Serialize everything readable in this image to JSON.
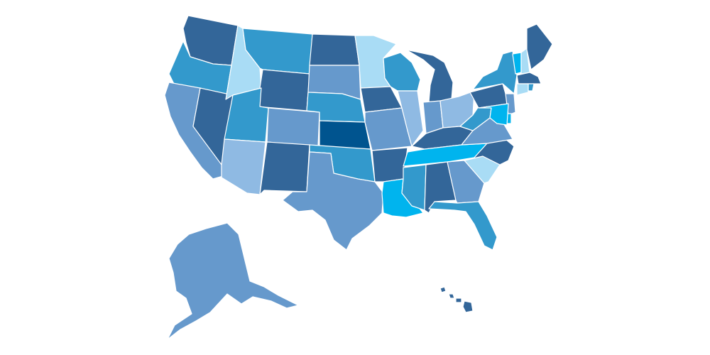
{
  "map": {
    "region": "United States",
    "legend": null,
    "palette": {
      "light": "#a9dcf5",
      "pale": "#8fbae3",
      "mid": "#6699cc",
      "medium": "#3399cc",
      "dark": "#336699",
      "darkest": "#00548f",
      "bright": "#00b4ee"
    },
    "states": [
      {
        "id": "WA",
        "fill": "dark"
      },
      {
        "id": "OR",
        "fill": "medium"
      },
      {
        "id": "CA",
        "fill": "mid"
      },
      {
        "id": "NV",
        "fill": "dark"
      },
      {
        "id": "ID",
        "fill": "light"
      },
      {
        "id": "MT",
        "fill": "medium"
      },
      {
        "id": "WY",
        "fill": "dark"
      },
      {
        "id": "UT",
        "fill": "medium"
      },
      {
        "id": "AZ",
        "fill": "pale"
      },
      {
        "id": "CO",
        "fill": "mid"
      },
      {
        "id": "NM",
        "fill": "dark"
      },
      {
        "id": "ND",
        "fill": "dark"
      },
      {
        "id": "SD",
        "fill": "mid"
      },
      {
        "id": "NE",
        "fill": "medium"
      },
      {
        "id": "KS",
        "fill": "darkest"
      },
      {
        "id": "OK",
        "fill": "medium"
      },
      {
        "id": "TX",
        "fill": "mid"
      },
      {
        "id": "MN",
        "fill": "light"
      },
      {
        "id": "IA",
        "fill": "dark"
      },
      {
        "id": "MO",
        "fill": "mid"
      },
      {
        "id": "AR",
        "fill": "dark"
      },
      {
        "id": "LA",
        "fill": "bright"
      },
      {
        "id": "WI",
        "fill": "medium"
      },
      {
        "id": "IL",
        "fill": "pale"
      },
      {
        "id": "MI",
        "fill": "dark"
      },
      {
        "id": "IN",
        "fill": "mid"
      },
      {
        "id": "OH",
        "fill": "pale"
      },
      {
        "id": "KY",
        "fill": "dark"
      },
      {
        "id": "TN",
        "fill": "bright"
      },
      {
        "id": "MS",
        "fill": "medium"
      },
      {
        "id": "AL",
        "fill": "dark"
      },
      {
        "id": "GA",
        "fill": "mid"
      },
      {
        "id": "FL",
        "fill": "medium"
      },
      {
        "id": "SC",
        "fill": "light"
      },
      {
        "id": "NC",
        "fill": "dark"
      },
      {
        "id": "VA",
        "fill": "mid"
      },
      {
        "id": "WV",
        "fill": "medium"
      },
      {
        "id": "PA",
        "fill": "dark"
      },
      {
        "id": "NY",
        "fill": "medium"
      },
      {
        "id": "VT",
        "fill": "bright"
      },
      {
        "id": "NH",
        "fill": "light"
      },
      {
        "id": "ME",
        "fill": "dark"
      },
      {
        "id": "MA",
        "fill": "dark"
      },
      {
        "id": "RI",
        "fill": "medium"
      },
      {
        "id": "CT",
        "fill": "light"
      },
      {
        "id": "NJ",
        "fill": "mid"
      },
      {
        "id": "DE",
        "fill": "bright"
      },
      {
        "id": "MD",
        "fill": "bright"
      },
      {
        "id": "AK",
        "fill": "mid"
      },
      {
        "id": "HI",
        "fill": "dark"
      }
    ]
  }
}
